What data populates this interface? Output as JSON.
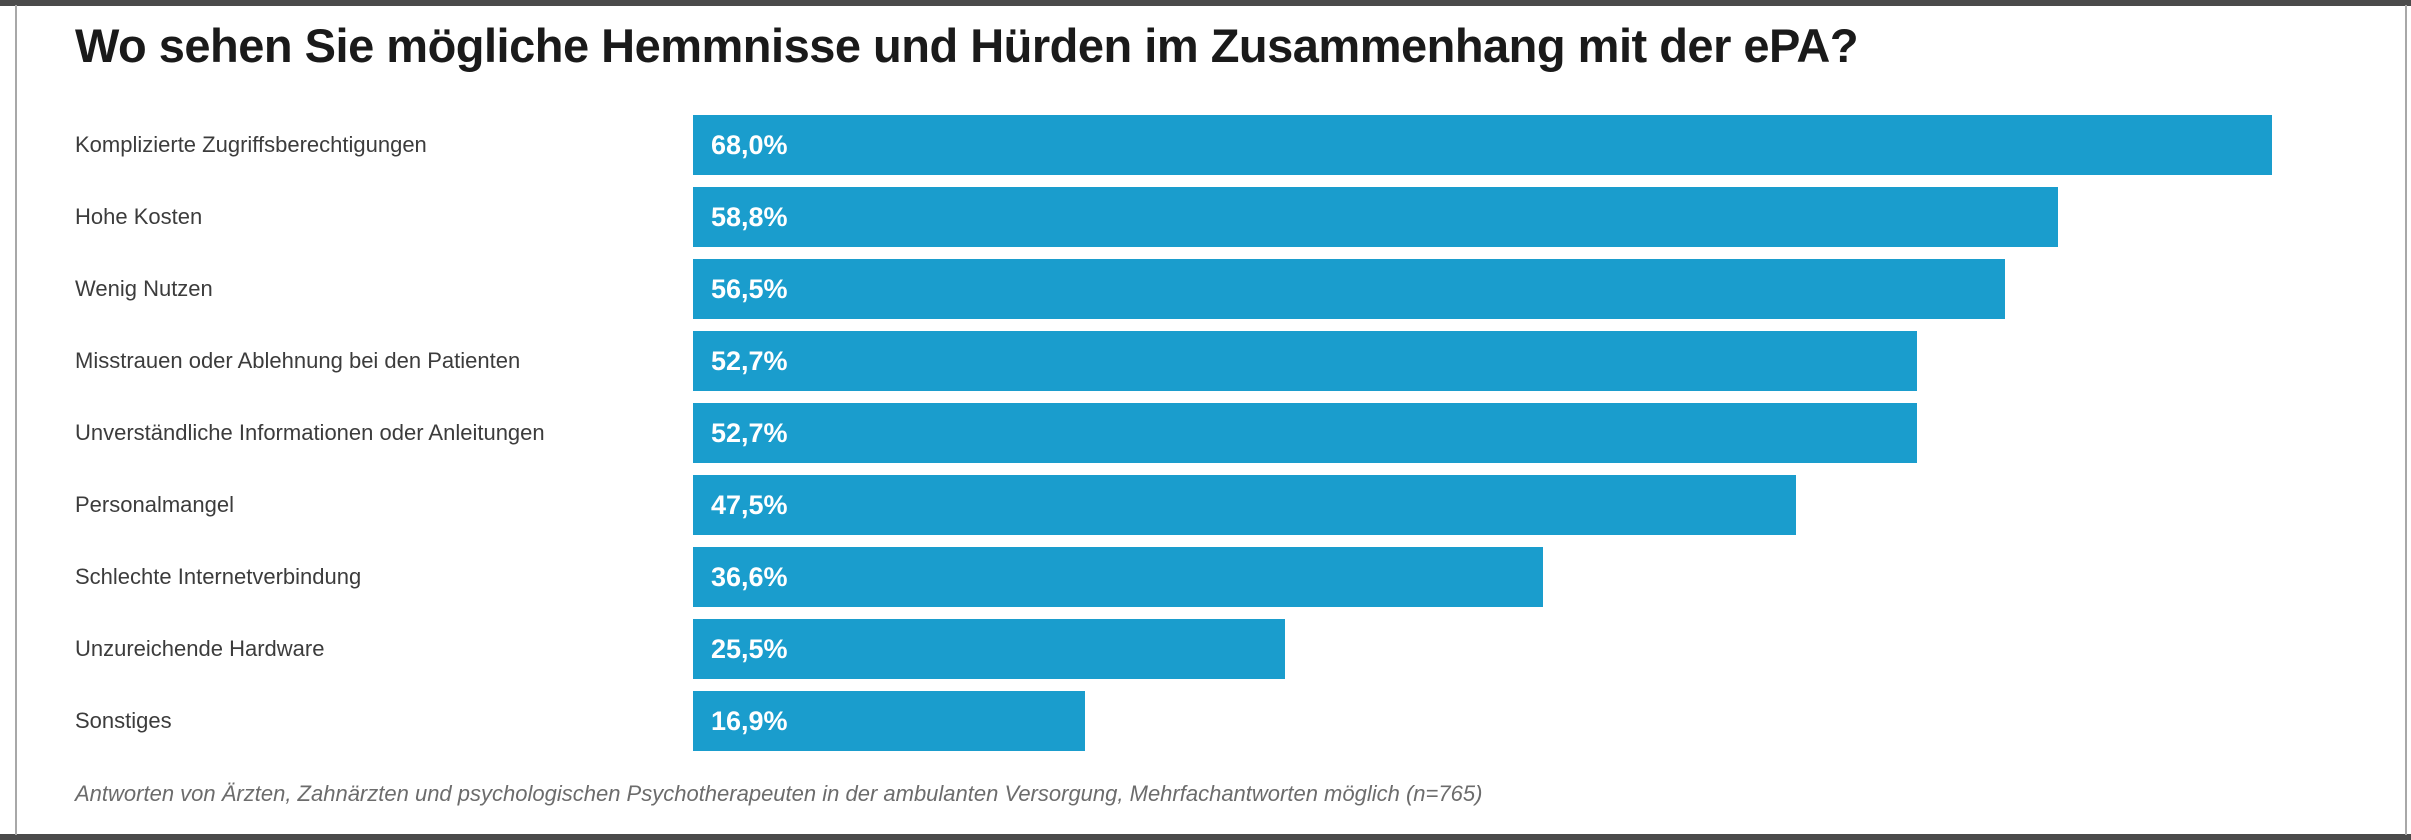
{
  "frame": {
    "band_color": "#4b4b4b",
    "edge_color": "#a8a8a8",
    "background": "#ffffff"
  },
  "chart_data": {
    "type": "bar",
    "orientation": "horizontal",
    "title": "Wo sehen Sie mögliche Hemmnisse und Hürden im Zusammenhang mit der ePA?",
    "note": "Antworten von Ärzten, Zahnärzten und psychologischen Psychotherapeuten in der ambulanten Versorgung, Mehrfachantworten möglich (n=765)",
    "categories": [
      "Komplizierte Zugriffsberechtigungen",
      "Hohe Kosten",
      "Wenig Nutzen",
      "Misstrauen oder Ablehnung bei den Patienten",
      "Unverständliche Informationen oder Anleitungen",
      "Personalmangel",
      "Schlechte Internetverbindung",
      "Unzureichende Hardware",
      "Sonstiges"
    ],
    "values": [
      68.0,
      58.8,
      56.5,
      52.7,
      52.7,
      47.5,
      36.6,
      25.5,
      16.9
    ],
    "value_labels": [
      "68,0%",
      "58,8%",
      "56,5%",
      "52,7%",
      "52,7%",
      "47,5%",
      "36,6%",
      "25,5%",
      "16,9%"
    ],
    "xlim": [
      0,
      68.0
    ],
    "bar_color": "#1a9dcd",
    "value_label_color": "#ffffff",
    "grid": false,
    "legend": false,
    "value_labels_inside_bars": true
  }
}
